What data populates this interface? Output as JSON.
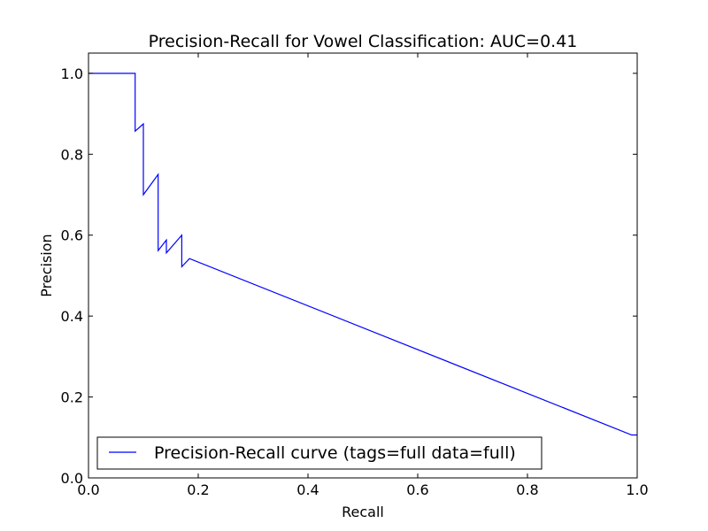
{
  "chart_data": {
    "type": "line",
    "title": "Precision-Recall for Vowel Classification: AUC=0.41",
    "xlabel": "Recall",
    "ylabel": "Precision",
    "xlim": [
      0.0,
      1.0
    ],
    "ylim": [
      0.0,
      1.05
    ],
    "xticks": [
      "0.0",
      "0.2",
      "0.4",
      "0.6",
      "0.8",
      "1.0"
    ],
    "yticks": [
      "0.0",
      "0.2",
      "0.4",
      "0.6",
      "0.8",
      "1.0"
    ],
    "grid": false,
    "legend_position": "lower-left",
    "series": [
      {
        "name": "Precision-Recall curve (tags=full data=full)",
        "color": "#0000ff",
        "x": [
          0.0,
          0.085,
          0.085,
          0.1,
          0.1,
          0.127,
          0.127,
          0.142,
          0.142,
          0.17,
          0.17,
          0.184,
          0.99,
          1.0
        ],
        "y": [
          1.0,
          1.0,
          0.857,
          0.875,
          0.7,
          0.75,
          0.562,
          0.588,
          0.556,
          0.6,
          0.522,
          0.542,
          0.106,
          0.106
        ]
      }
    ]
  }
}
